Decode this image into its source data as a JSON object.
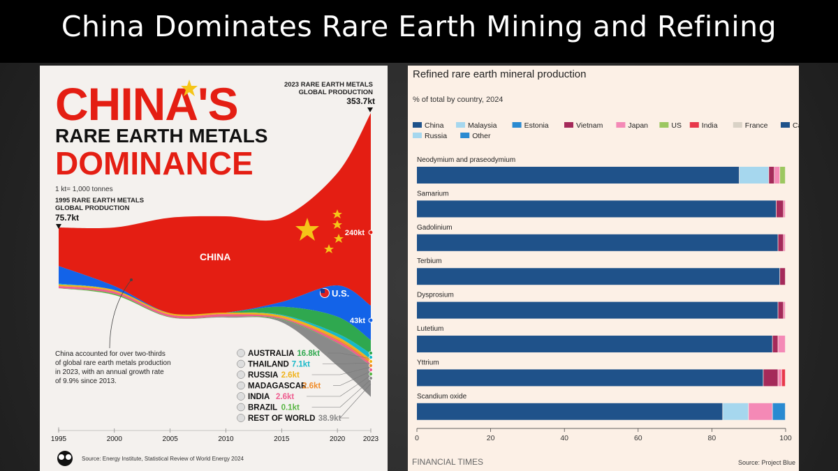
{
  "banner": {
    "title": "China Dominates Rare Earth Mining and Refining"
  },
  "left": {
    "title_line1": "CHINA'S",
    "title_line2": "RARE EARTH METALS",
    "title_line3": "DOMINANCE",
    "unit_note": "1 kt= 1,000 tonnes",
    "start_label_1": "1995 RARE EARTH METALS",
    "start_label_2": "GLOBAL PRODUCTION",
    "start_value": "75.7kt",
    "end_label_1": "2023 RARE EARTH METALS",
    "end_label_2": "GLOBAL PRODUCTION",
    "end_value": "353.7kt",
    "china_label": "CHINA",
    "china_value": "240kt",
    "us_label": "U.S.",
    "us_value": "43kt",
    "annotation_1": "China accounted for over two-thirds",
    "annotation_2": "of global rare earth metals production",
    "annotation_3": "in 2023, with an annual growth rate",
    "annotation_4": "of 9.9% since 2013.",
    "source": "Source: Energy Institute, Statistical Review of World Energy 2024",
    "colors": {
      "china": "#e41e13",
      "us": "#1363e8",
      "australia": "#2fa84f",
      "thailand": "#17b8c9",
      "russia": "#f0b21a",
      "madagascar": "#f08c2a",
      "india": "#ee5d8f",
      "brazil": "#58b543",
      "rest": "#8a8a8a"
    },
    "countries": [
      {
        "name": "AUSTRALIA",
        "value": "16.8kt",
        "color": "#2fa84f"
      },
      {
        "name": "THAILAND",
        "value": "7.1kt",
        "color": "#17b8c9"
      },
      {
        "name": "RUSSIA",
        "value": "2.6kt",
        "color": "#f0b21a"
      },
      {
        "name": "MADAGASCAR",
        "value": "2.6kt",
        "color": "#f08c2a"
      },
      {
        "name": "INDIA",
        "value": "2.6kt",
        "color": "#ee5d8f"
      },
      {
        "name": "BRAZIL",
        "value": "0.1kt",
        "color": "#58b543"
      },
      {
        "name": "REST OF WORLD",
        "value": "38.9kt",
        "color": "#8a8a8a"
      }
    ],
    "x_ticks": [
      "1995",
      "2000",
      "2005",
      "2010",
      "2015",
      "2020",
      "2023"
    ]
  },
  "right": {
    "title": "Refined rare earth mineral production",
    "subtitle": "% of total by country, 2024",
    "footer_brand": "FINANCIAL TIMES",
    "footer_source": "Source: Project Blue"
  },
  "chart_data": [
    {
      "type": "area",
      "title": "CHINA'S RARE EARTH METALS DOMINANCE",
      "xlabel": "",
      "ylabel": "",
      "x": [
        1995,
        2000,
        2005,
        2010,
        2015,
        2020,
        2023
      ],
      "xlim": [
        1995,
        2023
      ],
      "unit": "kt",
      "series": [
        {
          "name": "CHINA",
          "values": [
            48,
            73,
            119,
            120,
            105,
            140,
            240
          ]
        },
        {
          "name": "U.S.",
          "values": [
            22,
            5,
            0,
            0,
            6,
            39,
            43
          ]
        },
        {
          "name": "AUSTRALIA",
          "values": [
            0,
            0,
            0,
            0,
            10,
            21,
            16.8
          ]
        },
        {
          "name": "THAILAND",
          "values": [
            1,
            0,
            0,
            0,
            1,
            4,
            7.1
          ]
        },
        {
          "name": "RUSSIA",
          "values": [
            2,
            2,
            2,
            2,
            2.8,
            2.7,
            2.6
          ]
        },
        {
          "name": "MADAGASCAR",
          "values": [
            0,
            0,
            0,
            0,
            0,
            2,
            2.6
          ]
        },
        {
          "name": "INDIA",
          "values": [
            2.7,
            2.7,
            2.7,
            2.9,
            1.5,
            2.9,
            2.6
          ]
        },
        {
          "name": "BRAZIL",
          "values": [
            0.1,
            1.4,
            0.5,
            0.2,
            0.9,
            0.6,
            0.1
          ]
        },
        {
          "name": "REST OF WORLD",
          "values": [
            0,
            0,
            0,
            1,
            3,
            28,
            38.9
          ]
        }
      ],
      "totals": {
        "1995": 75.7,
        "2023": 353.7
      }
    },
    {
      "type": "bar",
      "stacked": true,
      "orientation": "horizontal",
      "title": "Refined rare earth mineral production",
      "subtitle": "% of total by country, 2024",
      "xlim": [
        0,
        100
      ],
      "x_ticks": [
        0,
        20,
        40,
        60,
        80,
        100
      ],
      "categories": [
        "Neodymium and praseodymium",
        "Samarium",
        "Gadolinium",
        "Terbium",
        "Dysprosium",
        "Lutetium",
        "Yttrium",
        "Scandium oxide"
      ],
      "legend": [
        {
          "name": "China",
          "color": "#1f528a"
        },
        {
          "name": "Malaysia",
          "color": "#a6d7ee"
        },
        {
          "name": "Estonia",
          "color": "#2a8ad1"
        },
        {
          "name": "Vietnam",
          "color": "#a52a5a"
        },
        {
          "name": "Japan",
          "color": "#f489b6"
        },
        {
          "name": "US",
          "color": "#9cc760"
        },
        {
          "name": "India",
          "color": "#e8384b"
        },
        {
          "name": "France",
          "color": "#d9d2c6"
        },
        {
          "name": "Canada",
          "color": "#1f528a"
        },
        {
          "name": "Russia",
          "color": "#a6d7ee"
        },
        {
          "name": "Other",
          "color": "#2a8ad1"
        }
      ],
      "series": [
        {
          "name": "China",
          "values": [
            87.5,
            97.5,
            98,
            98.5,
            98,
            96.5,
            94,
            83
          ]
        },
        {
          "name": "Malaysia",
          "values": [
            8,
            0,
            0,
            0,
            0,
            0,
            0,
            7
          ]
        },
        {
          "name": "Estonia",
          "values": [
            0,
            0,
            0,
            0,
            0,
            0,
            0,
            0
          ]
        },
        {
          "name": "Vietnam",
          "values": [
            1.5,
            2,
            1.5,
            1.5,
            1.5,
            1.5,
            4,
            0
          ]
        },
        {
          "name": "Japan",
          "values": [
            1.5,
            0.5,
            0.5,
            0,
            0.5,
            2,
            1,
            6.5
          ]
        },
        {
          "name": "US",
          "values": [
            1.5,
            0,
            0,
            0,
            0,
            0,
            0,
            0
          ]
        },
        {
          "name": "India",
          "values": [
            0,
            0,
            0,
            0,
            0,
            0,
            1,
            0
          ]
        },
        {
          "name": "France",
          "values": [
            0,
            0,
            0,
            0,
            0,
            0,
            0,
            0
          ]
        },
        {
          "name": "Canada",
          "values": [
            0,
            0,
            0,
            0,
            0,
            0,
            0,
            0
          ]
        },
        {
          "name": "Russia",
          "values": [
            0,
            0,
            0,
            0,
            0,
            0,
            0,
            0
          ]
        },
        {
          "name": "Other",
          "values": [
            0,
            0,
            0,
            0,
            0,
            0,
            0,
            3.5
          ]
        }
      ]
    }
  ]
}
